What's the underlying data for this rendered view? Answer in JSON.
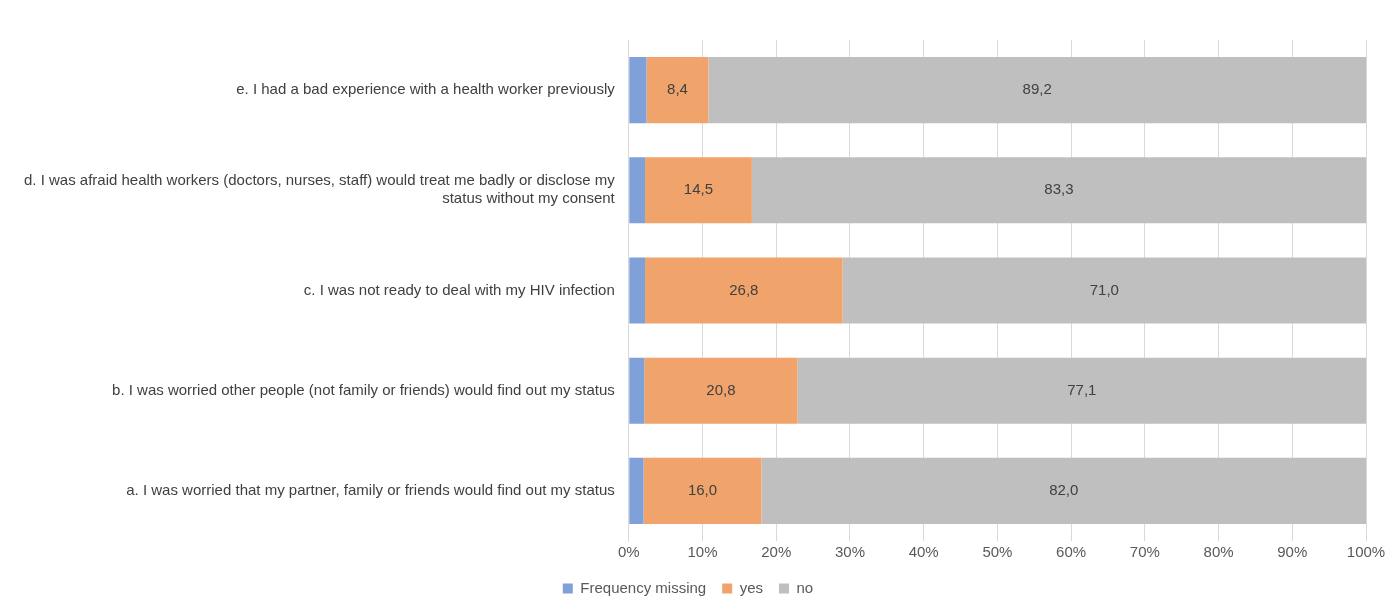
{
  "chart_data": {
    "type": "bar",
    "orientation": "horizontal",
    "stacked": true,
    "categories": [
      "e. I had a bad experience with a health worker previously",
      "d. I was afraid health workers (doctors, nurses, staff) would treat me badly or disclose my status without my consent",
      "c. I was not ready to deal with my HIV infection",
      "b. I was worried other people (not family or friends) would find out my status",
      "a. I was worried that my partner, family or friends would find out my status"
    ],
    "series": [
      {
        "name": "Frequency missing",
        "color": "#7fa0d8",
        "values": [
          2.4,
          2.2,
          2.2,
          2.1,
          2.0
        ]
      },
      {
        "name": "yes",
        "color": "#f0a46c",
        "values": [
          8.4,
          14.5,
          26.8,
          20.8,
          16.0
        ],
        "value_labels": [
          "8,4",
          "14,5",
          "26,8",
          "20,8",
          "16,0"
        ]
      },
      {
        "name": "no",
        "color": "#bfbfbf",
        "values": [
          89.2,
          83.3,
          71.0,
          77.1,
          82.0
        ],
        "value_labels": [
          "89,2",
          "83,3",
          "71,0",
          "77,1",
          "82,0"
        ]
      }
    ],
    "xlim": [
      0,
      100
    ],
    "xticks": [
      {
        "value": 0,
        "label": "0%"
      },
      {
        "value": 10,
        "label": "10%"
      },
      {
        "value": 20,
        "label": "20%"
      },
      {
        "value": 30,
        "label": "30%"
      },
      {
        "value": 40,
        "label": "40%"
      },
      {
        "value": 50,
        "label": "50%"
      },
      {
        "value": 60,
        "label": "60%"
      },
      {
        "value": 70,
        "label": "70%"
      },
      {
        "value": 80,
        "label": "80%"
      },
      {
        "value": 90,
        "label": "90%"
      },
      {
        "value": 100,
        "label": "100%"
      }
    ],
    "grid": "x",
    "legend": "bottom"
  }
}
